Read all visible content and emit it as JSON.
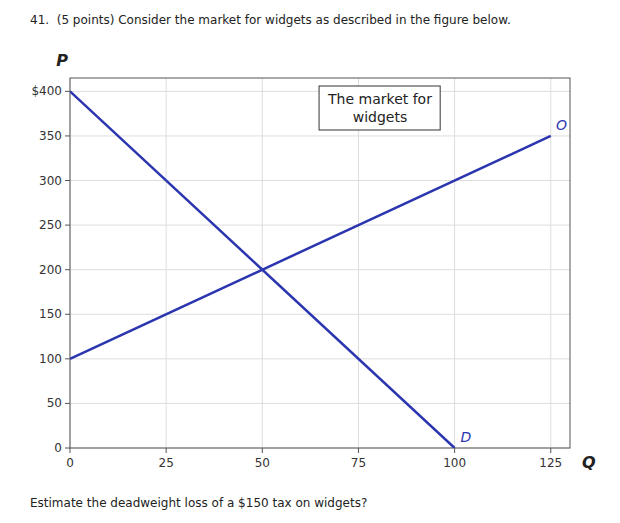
{
  "chart_data": {
    "type": "line",
    "title": "The market for\nwidgets",
    "x_label": "Q",
    "y_label": "P",
    "annotations": [
      "41.  (5 points) Consider the market for widgets as described in the figure below.",
      "Estimate the deadweight loss of a $150 tax on widgets?"
    ],
    "series": [
      {
        "name": "D",
        "color": "#2B35AF",
        "x": [
          0,
          100
        ],
        "values": [
          400,
          0
        ]
      },
      {
        "name": "O",
        "color": "#2B35AF",
        "x": [
          0,
          125
        ],
        "values": [
          100,
          350
        ]
      }
    ],
    "xlim": [
      0,
      130
    ],
    "ylim": [
      0,
      415
    ],
    "xticks": [
      0,
      25,
      50,
      75,
      100,
      125
    ],
    "yticks": [
      0,
      50,
      100,
      150,
      200,
      250,
      300,
      350,
      {
        "value": 400,
        "label": "$400"
      }
    ],
    "grid": true
  }
}
